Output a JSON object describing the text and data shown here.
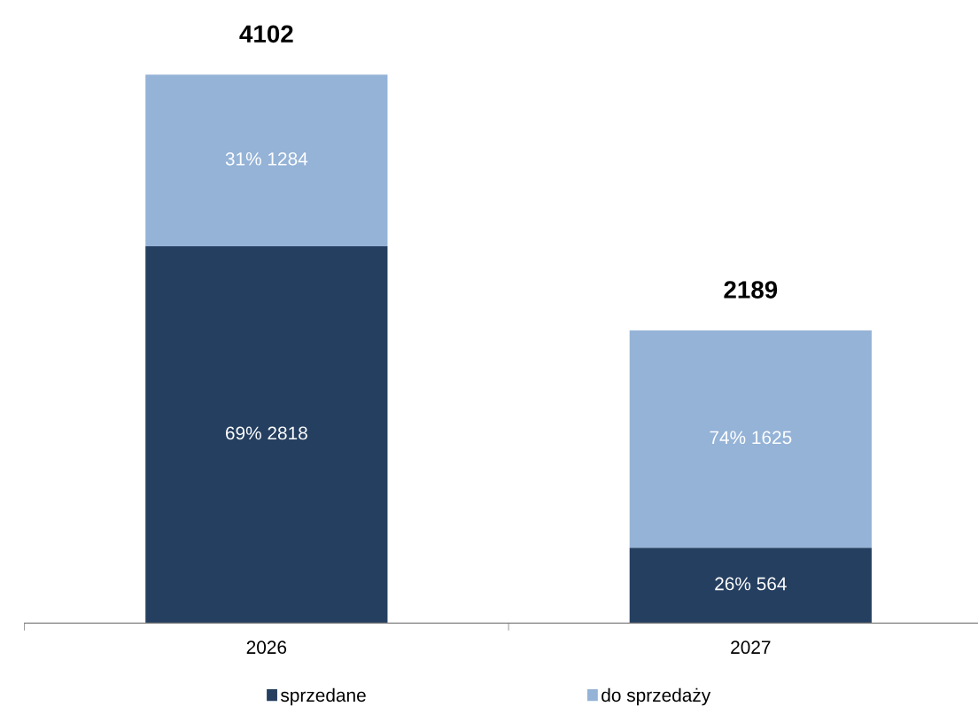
{
  "chart_data": {
    "type": "bar",
    "stacked": true,
    "categories": [
      "2026",
      "2027"
    ],
    "series": [
      {
        "name": "sprzedane",
        "color": "#253f60",
        "values": [
          2818,
          564
        ],
        "value_labels": [
          "69% 2818",
          "26% 564"
        ]
      },
      {
        "name": "do sprzedaży",
        "color": "#95b3d7",
        "values": [
          1284,
          1625
        ],
        "value_labels": [
          "31% 1284",
          "74% 1625"
        ]
      }
    ],
    "totals": [
      "4102",
      "2189"
    ],
    "legend": "bottom",
    "grid": false
  }
}
